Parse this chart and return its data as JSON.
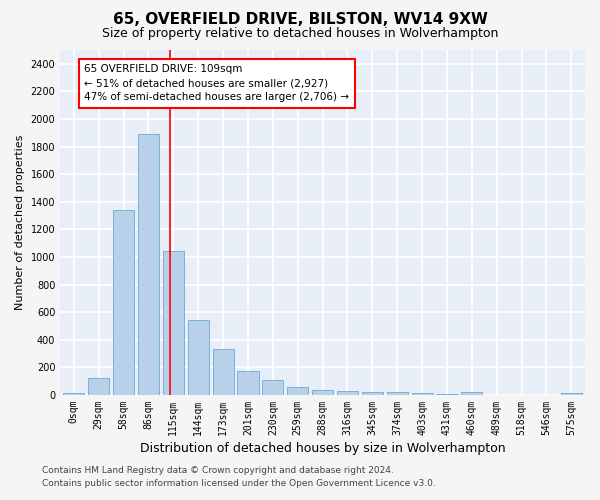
{
  "title1": "65, OVERFIELD DRIVE, BILSTON, WV14 9XW",
  "title2": "Size of property relative to detached houses in Wolverhampton",
  "xlabel": "Distribution of detached houses by size in Wolverhampton",
  "ylabel": "Number of detached properties",
  "footer1": "Contains HM Land Registry data © Crown copyright and database right 2024.",
  "footer2": "Contains public sector information licensed under the Open Government Licence v3.0.",
  "bar_labels": [
    "0sqm",
    "29sqm",
    "58sqm",
    "86sqm",
    "115sqm",
    "144sqm",
    "173sqm",
    "201sqm",
    "230sqm",
    "259sqm",
    "288sqm",
    "316sqm",
    "345sqm",
    "374sqm",
    "403sqm",
    "431sqm",
    "460sqm",
    "489sqm",
    "518sqm",
    "546sqm",
    "575sqm"
  ],
  "bar_values": [
    15,
    125,
    1340,
    1890,
    1045,
    545,
    335,
    170,
    110,
    60,
    38,
    27,
    22,
    18,
    15,
    5,
    20,
    3,
    2,
    0,
    15
  ],
  "bar_color": "#b8d0ea",
  "bar_edge_color": "#6aaad4",
  "annotation_line1": "65 OVERFIELD DRIVE: 109sqm",
  "annotation_line2": "← 51% of detached houses are smaller (2,927)",
  "annotation_line3": "47% of semi-detached houses are larger (2,706) →",
  "vline_index": 3.87,
  "ylim": [
    0,
    2500
  ],
  "yticks": [
    0,
    200,
    400,
    600,
    800,
    1000,
    1200,
    1400,
    1600,
    1800,
    2000,
    2200,
    2400
  ],
  "bg_color": "#e8eef8",
  "grid_color": "#ffffff",
  "fig_bg": "#f5f5f5",
  "title1_fontsize": 11,
  "title2_fontsize": 9,
  "ylabel_fontsize": 8,
  "xlabel_fontsize": 9,
  "tick_fontsize": 7,
  "annot_fontsize": 7.5,
  "footer_fontsize": 6.5
}
